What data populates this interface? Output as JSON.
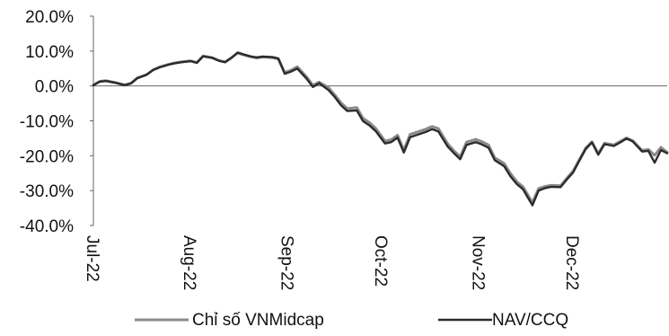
{
  "chart_data": {
    "type": "line",
    "title": "",
    "xlabel": "",
    "ylabel": "",
    "ylim": [
      -40,
      20
    ],
    "y_ticks": [
      20,
      10,
      0,
      -10,
      -20,
      -30,
      -40
    ],
    "y_tick_labels": [
      "20.0%",
      "10.0%",
      "0.0%",
      "-10.0%",
      "-20.0%",
      "-30.0%",
      "-40.0%"
    ],
    "x_start": "2022-07-01",
    "x_end": "2022-12-31",
    "x_ticks": [
      "2022-07-01",
      "2022-08-01",
      "2022-09-01",
      "2022-10-01",
      "2022-11-01",
      "2022-12-01"
    ],
    "x_tick_labels": [
      "Jul-22",
      "Aug-22",
      "Sep-22",
      "Oct-22",
      "Nov-22",
      "Dec-22"
    ],
    "grid": false,
    "legend": "bottom",
    "series": [
      {
        "name": "Chỉ số VNMidcap",
        "color": "#8a8a8a",
        "points": [
          [
            "2022-07-01",
            0.3
          ],
          [
            "2022-07-03",
            1.3
          ],
          [
            "2022-07-05",
            1.5
          ],
          [
            "2022-07-08",
            1.0
          ],
          [
            "2022-07-11",
            0.3
          ],
          [
            "2022-07-13",
            0.8
          ],
          [
            "2022-07-15",
            2.3
          ],
          [
            "2022-07-18",
            3.3
          ],
          [
            "2022-07-20",
            4.6
          ],
          [
            "2022-07-22",
            5.4
          ],
          [
            "2022-07-25",
            6.2
          ],
          [
            "2022-07-27",
            6.6
          ],
          [
            "2022-07-29",
            6.9
          ],
          [
            "2022-08-01",
            7.2
          ],
          [
            "2022-08-03",
            6.7
          ],
          [
            "2022-08-05",
            8.6
          ],
          [
            "2022-08-08",
            8.1
          ],
          [
            "2022-08-10",
            7.3
          ],
          [
            "2022-08-12",
            6.9
          ],
          [
            "2022-08-14",
            8.1
          ],
          [
            "2022-08-16",
            9.4
          ],
          [
            "2022-08-18",
            8.9
          ],
          [
            "2022-08-20",
            8.4
          ],
          [
            "2022-08-22",
            8.0
          ],
          [
            "2022-08-24",
            8.3
          ],
          [
            "2022-08-27",
            8.1
          ],
          [
            "2022-08-29",
            7.7
          ],
          [
            "2022-08-31",
            3.9
          ],
          [
            "2022-09-02",
            4.5
          ],
          [
            "2022-09-04",
            5.5
          ],
          [
            "2022-09-07",
            2.6
          ],
          [
            "2022-09-09",
            0.2
          ],
          [
            "2022-09-11",
            1.1
          ],
          [
            "2022-09-14",
            -0.5
          ],
          [
            "2022-09-16",
            -2.6
          ],
          [
            "2022-09-18",
            -4.9
          ],
          [
            "2022-09-20",
            -6.5
          ],
          [
            "2022-09-23",
            -6.2
          ],
          [
            "2022-09-25",
            -9.3
          ],
          [
            "2022-09-27",
            -10.5
          ],
          [
            "2022-09-29",
            -12.1
          ],
          [
            "2022-10-02",
            -15.8
          ],
          [
            "2022-10-04",
            -15.4
          ],
          [
            "2022-10-06",
            -14.1
          ],
          [
            "2022-10-08",
            -18.4
          ],
          [
            "2022-10-10",
            -13.9
          ],
          [
            "2022-10-13",
            -13.0
          ],
          [
            "2022-10-15",
            -12.4
          ],
          [
            "2022-10-17",
            -11.6
          ],
          [
            "2022-10-19",
            -12.2
          ],
          [
            "2022-10-22",
            -16.6
          ],
          [
            "2022-10-24",
            -18.6
          ],
          [
            "2022-10-26",
            -20.3
          ],
          [
            "2022-10-28",
            -16.1
          ],
          [
            "2022-10-31",
            -15.3
          ],
          [
            "2022-11-02",
            -16.0
          ],
          [
            "2022-11-04",
            -16.9
          ],
          [
            "2022-11-06",
            -20.6
          ],
          [
            "2022-11-09",
            -22.2
          ],
          [
            "2022-11-11",
            -25.1
          ],
          [
            "2022-11-13",
            -27.4
          ],
          [
            "2022-11-15",
            -28.9
          ],
          [
            "2022-11-18",
            -33.4
          ],
          [
            "2022-11-20",
            -29.4
          ],
          [
            "2022-11-22",
            -28.8
          ],
          [
            "2022-11-24",
            -28.5
          ],
          [
            "2022-11-27",
            -28.6
          ],
          [
            "2022-11-29",
            -26.4
          ],
          [
            "2022-12-01",
            -24.4
          ],
          [
            "2022-12-03",
            -21.1
          ],
          [
            "2022-12-05",
            -17.8
          ],
          [
            "2022-12-07",
            -16.0
          ],
          [
            "2022-12-09",
            -19.4
          ],
          [
            "2022-12-11",
            -16.4
          ],
          [
            "2022-12-14",
            -16.9
          ],
          [
            "2022-12-16",
            -15.9
          ],
          [
            "2022-12-18",
            -14.9
          ],
          [
            "2022-12-20",
            -15.7
          ],
          [
            "2022-12-23",
            -18.5
          ],
          [
            "2022-12-25",
            -18.2
          ],
          [
            "2022-12-27",
            -19.9
          ],
          [
            "2022-12-29",
            -17.6
          ],
          [
            "2022-12-31",
            -19.0
          ]
        ]
      },
      {
        "name": "NAV/CCQ",
        "color": "#2b2b2b",
        "points": [
          [
            "2022-07-01",
            0.2
          ],
          [
            "2022-07-03",
            1.2
          ],
          [
            "2022-07-05",
            1.4
          ],
          [
            "2022-07-08",
            0.9
          ],
          [
            "2022-07-11",
            0.2
          ],
          [
            "2022-07-13",
            0.7
          ],
          [
            "2022-07-15",
            2.2
          ],
          [
            "2022-07-18",
            3.2
          ],
          [
            "2022-07-20",
            4.5
          ],
          [
            "2022-07-22",
            5.3
          ],
          [
            "2022-07-25",
            6.1
          ],
          [
            "2022-07-27",
            6.5
          ],
          [
            "2022-07-29",
            6.8
          ],
          [
            "2022-08-01",
            7.1
          ],
          [
            "2022-08-03",
            6.6
          ],
          [
            "2022-08-05",
            8.5
          ],
          [
            "2022-08-08",
            8.0
          ],
          [
            "2022-08-10",
            7.2
          ],
          [
            "2022-08-12",
            6.8
          ],
          [
            "2022-08-14",
            8.0
          ],
          [
            "2022-08-16",
            9.6
          ],
          [
            "2022-08-18",
            9.0
          ],
          [
            "2022-08-20",
            8.5
          ],
          [
            "2022-08-22",
            8.2
          ],
          [
            "2022-08-24",
            8.4
          ],
          [
            "2022-08-27",
            8.3
          ],
          [
            "2022-08-29",
            7.9
          ],
          [
            "2022-08-31",
            3.5
          ],
          [
            "2022-09-02",
            4.1
          ],
          [
            "2022-09-04",
            5.0
          ],
          [
            "2022-09-07",
            2.1
          ],
          [
            "2022-09-09",
            -0.3
          ],
          [
            "2022-09-11",
            0.8
          ],
          [
            "2022-09-14",
            -1.2
          ],
          [
            "2022-09-16",
            -3.2
          ],
          [
            "2022-09-18",
            -5.6
          ],
          [
            "2022-09-20",
            -7.2
          ],
          [
            "2022-09-23",
            -7.0
          ],
          [
            "2022-09-25",
            -10.1
          ],
          [
            "2022-09-27",
            -11.3
          ],
          [
            "2022-09-29",
            -12.9
          ],
          [
            "2022-10-02",
            -16.5
          ],
          [
            "2022-10-04",
            -16.1
          ],
          [
            "2022-10-06",
            -14.8
          ],
          [
            "2022-10-08",
            -19.1
          ],
          [
            "2022-10-10",
            -14.7
          ],
          [
            "2022-10-13",
            -13.8
          ],
          [
            "2022-10-15",
            -13.2
          ],
          [
            "2022-10-17",
            -12.4
          ],
          [
            "2022-10-19",
            -13.0
          ],
          [
            "2022-10-22",
            -17.4
          ],
          [
            "2022-10-24",
            -19.3
          ],
          [
            "2022-10-26",
            -21.0
          ],
          [
            "2022-10-28",
            -16.9
          ],
          [
            "2022-10-31",
            -16.1
          ],
          [
            "2022-11-02",
            -16.8
          ],
          [
            "2022-11-04",
            -17.7
          ],
          [
            "2022-11-06",
            -21.3
          ],
          [
            "2022-11-09",
            -23.0
          ],
          [
            "2022-11-11",
            -25.9
          ],
          [
            "2022-11-13",
            -28.1
          ],
          [
            "2022-11-15",
            -29.6
          ],
          [
            "2022-11-18",
            -34.2
          ],
          [
            "2022-11-20",
            -30.0
          ],
          [
            "2022-11-22",
            -29.3
          ],
          [
            "2022-11-24",
            -28.9
          ],
          [
            "2022-11-27",
            -29.0
          ],
          [
            "2022-11-29",
            -26.8
          ],
          [
            "2022-12-01",
            -24.8
          ],
          [
            "2022-12-03",
            -21.4
          ],
          [
            "2022-12-05",
            -18.1
          ],
          [
            "2022-12-07",
            -16.2
          ],
          [
            "2022-12-09",
            -19.7
          ],
          [
            "2022-12-11",
            -16.7
          ],
          [
            "2022-12-14",
            -17.2
          ],
          [
            "2022-12-16",
            -16.2
          ],
          [
            "2022-12-18",
            -15.1
          ],
          [
            "2022-12-20",
            -15.9
          ],
          [
            "2022-12-23",
            -18.8
          ],
          [
            "2022-12-25",
            -18.6
          ],
          [
            "2022-12-27",
            -22.0
          ],
          [
            "2022-12-29",
            -18.4
          ],
          [
            "2022-12-31",
            -19.3
          ]
        ]
      }
    ]
  }
}
